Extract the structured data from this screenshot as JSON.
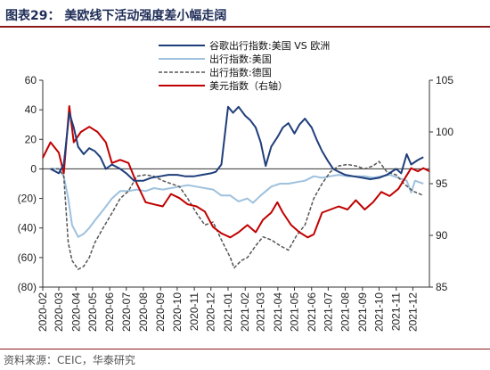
{
  "header": {
    "title": "图表29： 美欧线下活动强度差小幅走阔"
  },
  "footer": {
    "source": "资料来源：CEIC，华泰研究"
  },
  "chart_data": {
    "type": "line",
    "title": "美欧线下活动强度差小幅走阔",
    "x_ticks": [
      "2020-02",
      "2020-03",
      "2020-04",
      "2020-05",
      "2020-06",
      "2020-07",
      "2020-08",
      "2020-09",
      "2020-10",
      "2020-11",
      "2020-12",
      "2021-01",
      "2021-02",
      "2021-03",
      "2021-04",
      "2021-05",
      "2021-06",
      "2021-07",
      "2021-08",
      "2021-09",
      "2021-10",
      "2021-11",
      "2021-12"
    ],
    "x_range": [
      "2020-02-01",
      "2021-12-31"
    ],
    "left_axis": {
      "ylim": [
        -80,
        60
      ],
      "ticks": [
        -80,
        -60,
        -40,
        -20,
        0,
        20,
        40,
        60
      ],
      "tick_labels": [
        "(80)",
        "(60)",
        "(40)",
        "(20)",
        "0",
        "20",
        "40",
        "60"
      ]
    },
    "right_axis": {
      "ylim": [
        85,
        105
      ],
      "ticks": [
        85,
        90,
        95,
        100,
        105
      ],
      "tick_labels": [
        "85",
        "90",
        "95",
        "100",
        "105"
      ]
    },
    "grid": false,
    "legend_position": "top-right",
    "series": [
      {
        "name": "谷歌出行指数:美国 VS 欧洲",
        "color": "#1f3e7a",
        "style": "solid",
        "axis": "left",
        "points": [
          [
            "2020-02-15",
            0
          ],
          [
            "2020-03-01",
            -3
          ],
          [
            "2020-03-10",
            3
          ],
          [
            "2020-03-20",
            38
          ],
          [
            "2020-03-28",
            28
          ],
          [
            "2020-04-05",
            15
          ],
          [
            "2020-04-15",
            10
          ],
          [
            "2020-04-25",
            14
          ],
          [
            "2020-05-05",
            12
          ],
          [
            "2020-05-15",
            8
          ],
          [
            "2020-05-25",
            0
          ],
          [
            "2020-06-05",
            3
          ],
          [
            "2020-06-20",
            0
          ],
          [
            "2020-07-01",
            -3
          ],
          [
            "2020-07-15",
            -8
          ],
          [
            "2020-08-01",
            -8
          ],
          [
            "2020-08-15",
            -6
          ],
          [
            "2020-09-01",
            -5
          ],
          [
            "2020-09-15",
            -4
          ],
          [
            "2020-10-01",
            -4
          ],
          [
            "2020-10-15",
            -5
          ],
          [
            "2020-11-01",
            -5
          ],
          [
            "2020-11-15",
            -4
          ],
          [
            "2020-12-01",
            -3
          ],
          [
            "2020-12-10",
            -2
          ],
          [
            "2020-12-20",
            3
          ],
          [
            "2021-01-01",
            42
          ],
          [
            "2021-01-10",
            38
          ],
          [
            "2021-01-20",
            42
          ],
          [
            "2021-02-01",
            36
          ],
          [
            "2021-02-10",
            33
          ],
          [
            "2021-02-20",
            28
          ],
          [
            "2021-03-01",
            18
          ],
          [
            "2021-03-10",
            2
          ],
          [
            "2021-03-20",
            15
          ],
          [
            "2021-04-01",
            22
          ],
          [
            "2021-04-10",
            28
          ],
          [
            "2021-04-20",
            31
          ],
          [
            "2021-05-01",
            24
          ],
          [
            "2021-05-10",
            30
          ],
          [
            "2021-05-20",
            34
          ],
          [
            "2021-06-01",
            28
          ],
          [
            "2021-06-10",
            20
          ],
          [
            "2021-06-20",
            12
          ],
          [
            "2021-07-01",
            5
          ],
          [
            "2021-07-10",
            0
          ],
          [
            "2021-07-20",
            -2
          ],
          [
            "2021-08-01",
            -4
          ],
          [
            "2021-08-15",
            -5
          ],
          [
            "2021-09-01",
            -6
          ],
          [
            "2021-09-15",
            -7
          ],
          [
            "2021-10-01",
            -6
          ],
          [
            "2021-10-15",
            -4
          ],
          [
            "2021-11-01",
            0
          ],
          [
            "2021-11-10",
            -3
          ],
          [
            "2021-11-20",
            10
          ],
          [
            "2021-11-28",
            3
          ],
          [
            "2021-12-10",
            6
          ],
          [
            "2021-12-20",
            8
          ]
        ]
      },
      {
        "name": "出行指数:美国",
        "color": "#9ec1de",
        "style": "solid",
        "axis": "left",
        "points": [
          [
            "2020-02-15",
            0
          ],
          [
            "2020-03-01",
            0
          ],
          [
            "2020-03-10",
            -5
          ],
          [
            "2020-03-18",
            -20
          ],
          [
            "2020-03-25",
            -38
          ],
          [
            "2020-04-05",
            -46
          ],
          [
            "2020-04-15",
            -44
          ],
          [
            "2020-04-25",
            -40
          ],
          [
            "2020-05-05",
            -35
          ],
          [
            "2020-05-20",
            -28
          ],
          [
            "2020-06-05",
            -20
          ],
          [
            "2020-06-20",
            -15
          ],
          [
            "2020-07-05",
            -15
          ],
          [
            "2020-07-20",
            -14
          ],
          [
            "2020-08-05",
            -15
          ],
          [
            "2020-08-20",
            -13
          ],
          [
            "2020-09-05",
            -14
          ],
          [
            "2020-09-20",
            -13
          ],
          [
            "2020-10-05",
            -12
          ],
          [
            "2020-10-20",
            -11
          ],
          [
            "2020-11-05",
            -12
          ],
          [
            "2020-11-20",
            -13
          ],
          [
            "2020-12-05",
            -14
          ],
          [
            "2020-12-20",
            -18
          ],
          [
            "2021-01-05",
            -18
          ],
          [
            "2021-01-20",
            -22
          ],
          [
            "2021-02-05",
            -20
          ],
          [
            "2021-02-15",
            -23
          ],
          [
            "2021-03-01",
            -18
          ],
          [
            "2021-03-20",
            -12
          ],
          [
            "2021-04-05",
            -10
          ],
          [
            "2021-04-20",
            -10
          ],
          [
            "2021-05-05",
            -9
          ],
          [
            "2021-05-20",
            -8
          ],
          [
            "2021-06-05",
            -5
          ],
          [
            "2021-06-20",
            -6
          ],
          [
            "2021-07-05",
            -5
          ],
          [
            "2021-07-20",
            -4
          ],
          [
            "2021-08-05",
            -5
          ],
          [
            "2021-08-20",
            -5
          ],
          [
            "2021-09-05",
            -5
          ],
          [
            "2021-09-20",
            -6
          ],
          [
            "2021-10-05",
            -5
          ],
          [
            "2021-10-20",
            -4
          ],
          [
            "2021-11-05",
            -6
          ],
          [
            "2021-11-20",
            -8
          ],
          [
            "2021-11-28",
            -16
          ],
          [
            "2021-12-05",
            -8
          ],
          [
            "2021-12-20",
            -10
          ]
        ]
      },
      {
        "name": "出行指数:德国",
        "color": "#555555",
        "style": "dashed",
        "axis": "left",
        "points": [
          [
            "2020-02-15",
            0
          ],
          [
            "2020-03-01",
            0
          ],
          [
            "2020-03-10",
            -5
          ],
          [
            "2020-03-18",
            -50
          ],
          [
            "2020-03-25",
            -62
          ],
          [
            "2020-04-05",
            -68
          ],
          [
            "2020-04-15",
            -66
          ],
          [
            "2020-04-25",
            -60
          ],
          [
            "2020-05-05",
            -50
          ],
          [
            "2020-05-20",
            -40
          ],
          [
            "2020-06-05",
            -30
          ],
          [
            "2020-06-20",
            -20
          ],
          [
            "2020-07-05",
            -15
          ],
          [
            "2020-07-20",
            -5
          ],
          [
            "2020-08-05",
            -4
          ],
          [
            "2020-08-20",
            -5
          ],
          [
            "2020-09-05",
            -8
          ],
          [
            "2020-09-20",
            -10
          ],
          [
            "2020-10-05",
            -12
          ],
          [
            "2020-10-20",
            -20
          ],
          [
            "2020-11-05",
            -30
          ],
          [
            "2020-11-20",
            -38
          ],
          [
            "2020-12-05",
            -36
          ],
          [
            "2020-12-20",
            -48
          ],
          [
            "2021-01-05",
            -60
          ],
          [
            "2021-01-12",
            -67
          ],
          [
            "2021-01-25",
            -62
          ],
          [
            "2021-02-05",
            -60
          ],
          [
            "2021-02-20",
            -52
          ],
          [
            "2021-03-05",
            -46
          ],
          [
            "2021-03-20",
            -48
          ],
          [
            "2021-04-05",
            -52
          ],
          [
            "2021-04-20",
            -55
          ],
          [
            "2021-05-05",
            -45
          ],
          [
            "2021-05-20",
            -38
          ],
          [
            "2021-06-05",
            -20
          ],
          [
            "2021-06-20",
            -10
          ],
          [
            "2021-07-05",
            -2
          ],
          [
            "2021-07-20",
            2
          ],
          [
            "2021-08-05",
            3
          ],
          [
            "2021-08-20",
            2
          ],
          [
            "2021-09-05",
            0
          ],
          [
            "2021-09-20",
            2
          ],
          [
            "2021-10-01",
            5
          ],
          [
            "2021-10-15",
            -2
          ],
          [
            "2021-11-01",
            -4
          ],
          [
            "2021-11-15",
            -10
          ],
          [
            "2021-12-01",
            -15
          ],
          [
            "2021-12-20",
            -18
          ]
        ]
      },
      {
        "name": "美元指数（右轴）",
        "color": "#c00000",
        "style": "solid",
        "axis": "right",
        "points": [
          [
            "2020-02-01",
            97.5
          ],
          [
            "2020-02-15",
            99
          ],
          [
            "2020-03-01",
            98
          ],
          [
            "2020-03-10",
            96
          ],
          [
            "2020-03-20",
            102.5
          ],
          [
            "2020-03-28",
            99
          ],
          [
            "2020-04-10",
            100
          ],
          [
            "2020-04-25",
            100.5
          ],
          [
            "2020-05-10",
            100
          ],
          [
            "2020-05-25",
            99
          ],
          [
            "2020-06-05",
            97
          ],
          [
            "2020-06-20",
            97.3
          ],
          [
            "2020-07-05",
            97
          ],
          [
            "2020-07-20",
            95
          ],
          [
            "2020-08-05",
            93.2
          ],
          [
            "2020-08-20",
            93
          ],
          [
            "2020-09-05",
            92.8
          ],
          [
            "2020-09-20",
            94
          ],
          [
            "2020-10-05",
            93.6
          ],
          [
            "2020-10-20",
            93
          ],
          [
            "2020-11-05",
            92.8
          ],
          [
            "2020-11-20",
            92.3
          ],
          [
            "2020-12-05",
            90.8
          ],
          [
            "2020-12-20",
            90.2
          ],
          [
            "2021-01-05",
            89.8
          ],
          [
            "2021-01-20",
            90.3
          ],
          [
            "2021-02-05",
            91
          ],
          [
            "2021-02-20",
            90.3
          ],
          [
            "2021-03-05",
            91.5
          ],
          [
            "2021-03-20",
            92.2
          ],
          [
            "2021-03-31",
            93.2
          ],
          [
            "2021-04-10",
            92.2
          ],
          [
            "2021-04-25",
            91
          ],
          [
            "2021-05-10",
            90.3
          ],
          [
            "2021-05-25",
            89.8
          ],
          [
            "2021-06-05",
            90.1
          ],
          [
            "2021-06-20",
            92.2
          ],
          [
            "2021-07-05",
            92.5
          ],
          [
            "2021-07-20",
            92.8
          ],
          [
            "2021-08-05",
            92.5
          ],
          [
            "2021-08-20",
            93.4
          ],
          [
            "2021-09-05",
            92.5
          ],
          [
            "2021-09-20",
            93.2
          ],
          [
            "2021-10-05",
            94.2
          ],
          [
            "2021-10-20",
            93.8
          ],
          [
            "2021-11-05",
            94.5
          ],
          [
            "2021-11-20",
            95.8
          ],
          [
            "2021-11-28",
            96.5
          ],
          [
            "2021-12-10",
            96.2
          ],
          [
            "2021-12-20",
            96.5
          ],
          [
            "2021-12-31",
            96.2
          ]
        ]
      }
    ]
  }
}
